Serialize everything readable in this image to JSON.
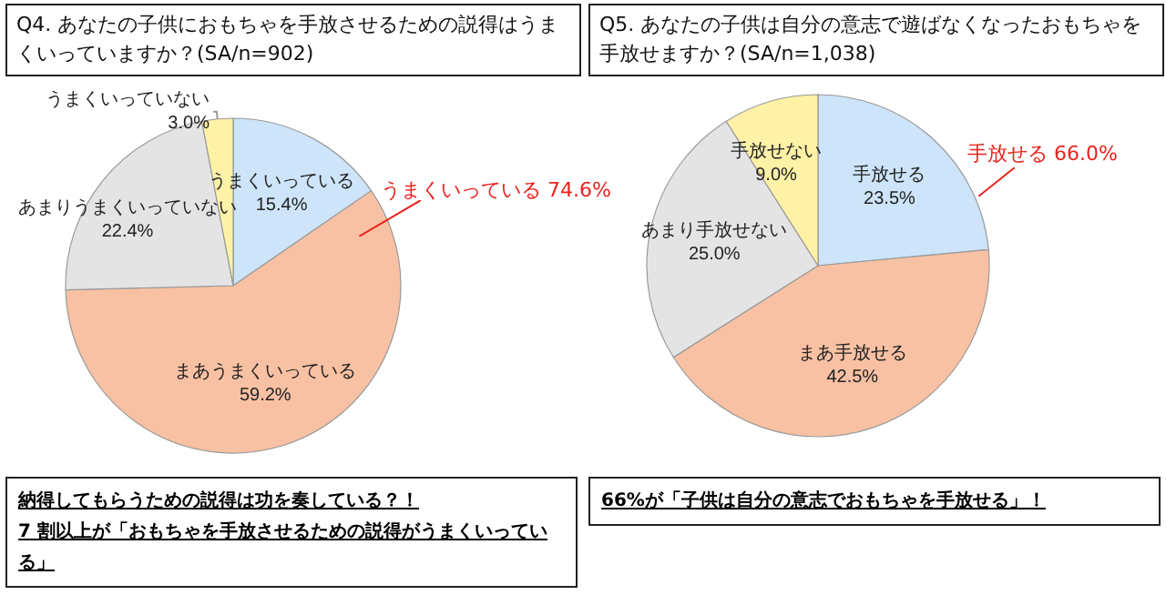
{
  "chart_data": [
    {
      "type": "pie",
      "title": "Q4. あなたの子供におもちゃを手放させるための説得はうまくいっていますか？(SA/n=902)",
      "categories": [
        "うまくいっている",
        "まあうまくいっている",
        "あまりうまくいっていない",
        "うまくいっていない"
      ],
      "values": [
        15.4,
        59.2,
        22.4,
        3.0
      ],
      "value_labels": [
        "15.4%",
        "59.2%",
        "22.4%",
        "3.0%"
      ],
      "colors": [
        "#cde4fa",
        "#f8c1a3",
        "#e4e4e4",
        "#fff1a6"
      ],
      "annotations": [
        "うまくいっている 74.6%",
        "納得してもらうための説得は功を奏している？！",
        "7 割以上が「おもちゃを手放させるための説得がうまくいっている」"
      ]
    },
    {
      "type": "pie",
      "title": "Q5. あなたの子供は自分の意志で遊ばなくなったおもちゃを手放せますか？(SA/n=1,038)",
      "categories": [
        "手放せる",
        "まあ手放せる",
        "あまり手放せない",
        "手放せない"
      ],
      "values": [
        23.5,
        42.5,
        25.0,
        9.0
      ],
      "value_labels": [
        "23.5%",
        "42.5%",
        "25.0%",
        "9.0%"
      ],
      "colors": [
        "#cde4fa",
        "#f8c1a3",
        "#e4e4e4",
        "#fff1a6"
      ],
      "annotations": [
        "手放せる 66.0%",
        "66%が「子供は自分の意志でおもちゃを手放せる」！"
      ]
    }
  ]
}
